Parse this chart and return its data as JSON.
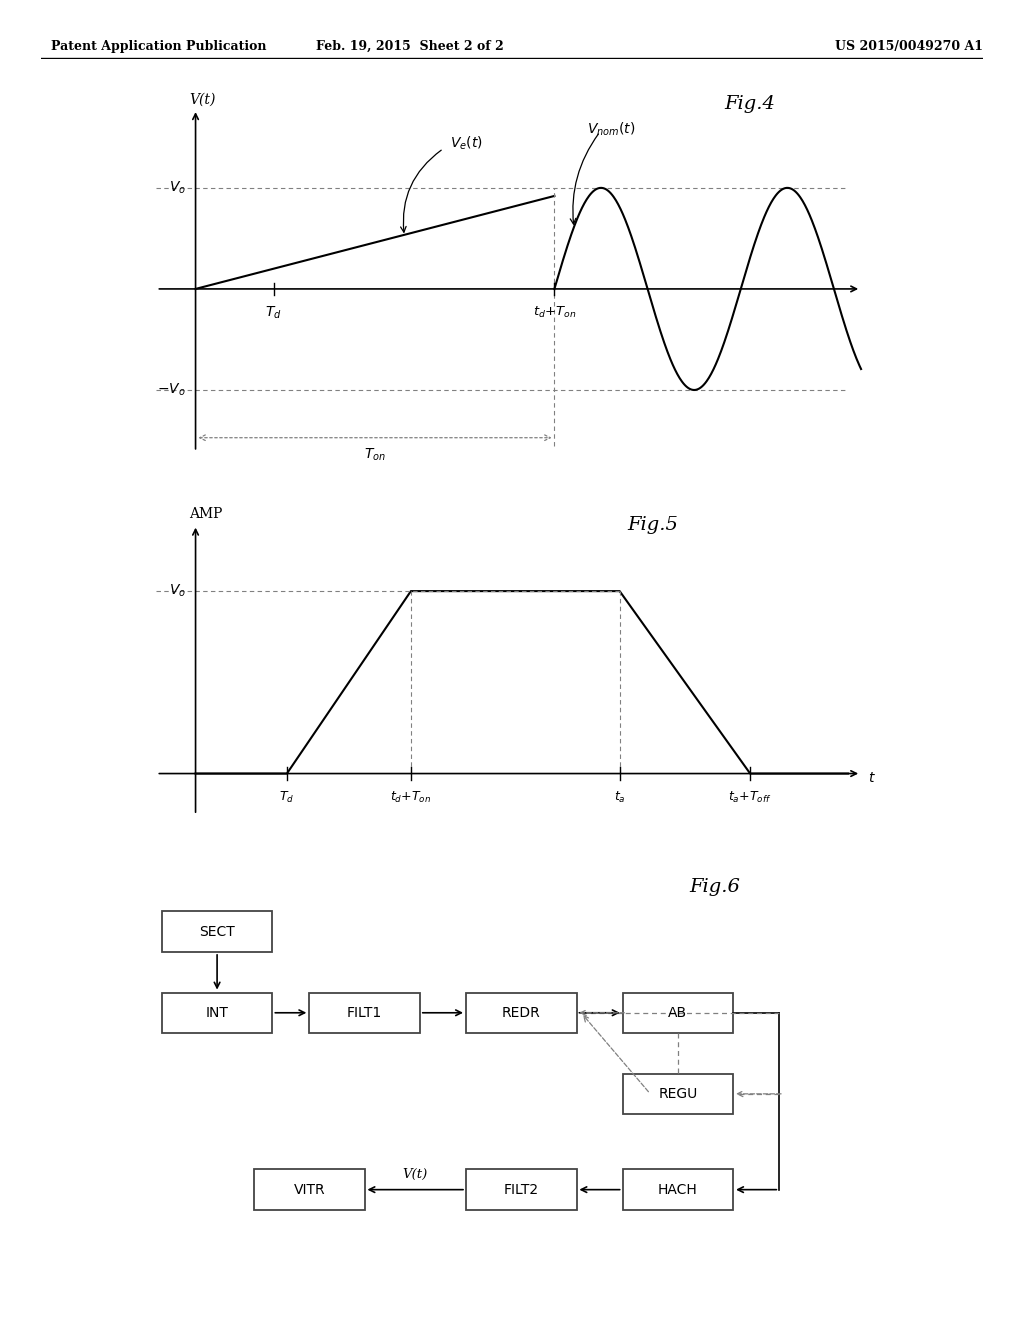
{
  "header_left": "Patent Application Publication",
  "header_mid": "Feb. 19, 2015  Sheet 2 of 2",
  "header_right": "US 2015/0049270 A1",
  "fig4_title": "Fig.4",
  "fig5_title": "Fig.5",
  "fig6_title": "Fig.6",
  "bg_color": "#ffffff",
  "fig4": {
    "ylabel": "V(t)",
    "Ve_label": "$V_e(t)$",
    "Vnom_label": "$V_{nom}(t)$",
    "Vo_label": "$V_o$",
    "neg_Vo_label": "$-V_o$",
    "Td_label": "$T_d$",
    "td_Ton_label": "$t_d$$+$$T_{on}$",
    "Ton_label": "$T_{on}$"
  },
  "fig5": {
    "ylabel": "AMP",
    "xlabel": "t",
    "Vo_label": "$V_o$",
    "Td_label": "$T_d$",
    "td_Ton_label": "$t_d$$+$$T_{on}$",
    "ta_label": "$t_a$",
    "ta_Toff_label": "$t_a$$+$$T_{off}$"
  },
  "fig6": {
    "boxes": [
      "SECT",
      "INT",
      "FILT1",
      "REDR",
      "AB",
      "REGU",
      "FILT2",
      "HACH",
      "VITR"
    ],
    "label_Vt": "V(t)"
  }
}
